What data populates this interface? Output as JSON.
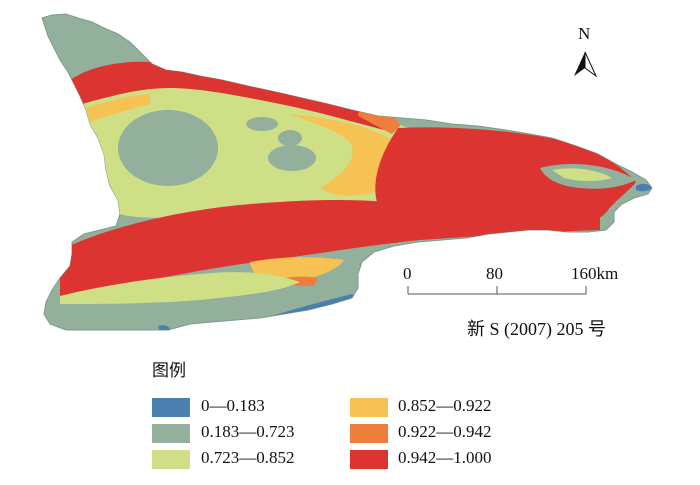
{
  "map": {
    "north_label": "N",
    "scale_ticks": [
      "0",
      "80",
      "160km"
    ],
    "approval_number": "新 S (2007) 205 号"
  },
  "legend": {
    "title": "图例",
    "classes": [
      {
        "label": "0—0.183",
        "color": "#4a7fb0"
      },
      {
        "label": "0.183—0.723",
        "color": "#92b09c"
      },
      {
        "label": "0.723—0.852",
        "color": "#cfdf85"
      },
      {
        "label": "0.852—0.922",
        "color": "#f5c253"
      },
      {
        "label": "0.922—0.942",
        "color": "#ee7e3c"
      },
      {
        "label": "0.942—1.000",
        "color": "#dc3430"
      }
    ]
  }
}
